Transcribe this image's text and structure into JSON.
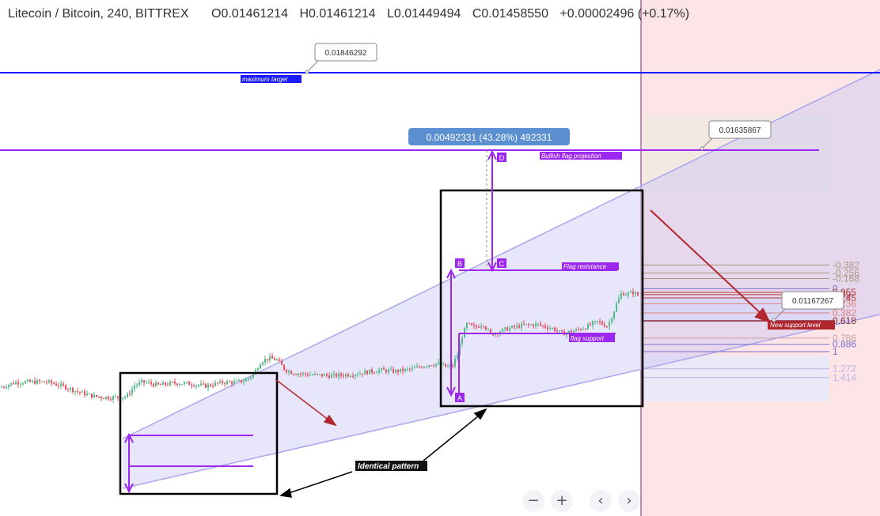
{
  "header": {
    "symbol": "Litecoin / Bitcoin, 240, BITTREX",
    "open": "O0.01461214",
    "high": "H0.01461214",
    "low": "L0.01449494",
    "close": "C0.01458550",
    "change": "+0.00002496 (+0.17%)"
  },
  "colors": {
    "candle_up": "#53b987",
    "candle_down": "#eb4d5c",
    "flag_purple": "#9c27f0",
    "max_target_blue": "#1a1aff",
    "channel_fill": "#c9c8f5",
    "forecast_bg": "#fde4e6",
    "arrow_red": "#b0272d"
  },
  "annotations": {
    "max_target_price": "0.01846292",
    "max_target_label": "maximum target",
    "projection_measure": "0.00492331 (43.28%) 492331",
    "bullish_flag_label": "Bullish flag projection",
    "channel_top_price": "0.01635867",
    "flag_resistance_label": "Flag resistance",
    "flag_support_label": "flag support",
    "new_support_price": "0.01167267",
    "new_support_label": "New support level",
    "identical_pattern_label": "Identical pattern",
    "point_a": "A",
    "point_b": "B",
    "point_c": "C",
    "point_d": "D"
  },
  "chart_data": {
    "type": "candlestick",
    "symbol": "Litecoin / Bitcoin",
    "interval": "240",
    "exchange": "BITTREX",
    "ohlc_last": {
      "open": 0.01461214,
      "high": 0.01461214,
      "low": 0.01449494,
      "close": 0.0145855
    },
    "close_path": [
      [
        0,
        0.00985
      ],
      [
        20,
        0.00999
      ],
      [
        40,
        0.01
      ],
      [
        60,
        0.01
      ],
      [
        80,
        0.00988
      ],
      [
        100,
        0.00972
      ],
      [
        120,
        0.0096
      ],
      [
        140,
        0.00957
      ],
      [
        160,
        0.0096
      ],
      [
        170,
        0.0099
      ],
      [
        180,
        0.01
      ],
      [
        200,
        0.00991
      ],
      [
        220,
        0.00997
      ],
      [
        240,
        0.00995
      ],
      [
        260,
        0.00989
      ],
      [
        280,
        0.00998
      ],
      [
        300,
        0.01
      ],
      [
        310,
        0.01004
      ],
      [
        320,
        0.0102
      ],
      [
        330,
        0.01057
      ],
      [
        340,
        0.01065
      ],
      [
        350,
        0.0106
      ],
      [
        360,
        0.01034
      ],
      [
        370,
        0.01025
      ],
      [
        390,
        0.0102
      ],
      [
        420,
        0.01017
      ],
      [
        440,
        0.0102
      ],
      [
        460,
        0.01026
      ],
      [
        480,
        0.01032
      ],
      [
        500,
        0.01029
      ],
      [
        520,
        0.01035
      ],
      [
        540,
        0.01047
      ],
      [
        555,
        0.0105
      ],
      [
        565,
        0.0104
      ],
      [
        572,
        0.01045
      ],
      [
        578,
        0.01075
      ],
      [
        583,
        0.0112
      ],
      [
        590,
        0.01158
      ],
      [
        600,
        0.01148
      ],
      [
        610,
        0.0116
      ],
      [
        620,
        0.0113
      ],
      [
        640,
        0.01145
      ],
      [
        660,
        0.01155
      ],
      [
        680,
        0.01157
      ],
      [
        700,
        0.01145
      ],
      [
        710,
        0.01132
      ],
      [
        725,
        0.0114
      ],
      [
        740,
        0.0115
      ],
      [
        755,
        0.01165
      ],
      [
        768,
        0.01152
      ],
      [
        775,
        0.0119
      ],
      [
        780,
        0.0122
      ],
      [
        786,
        0.01245
      ],
      [
        792,
        0.0124
      ],
      [
        800,
        0.01245
      ],
      [
        808,
        0.01235
      ]
    ],
    "horizontal_levels": [
      {
        "name": "maximum target",
        "price": 0.01846292
      },
      {
        "name": "Bullish flag projection",
        "price": 0.01635867
      },
      {
        "name": "New support level",
        "price": 0.01167267
      }
    ],
    "measure": {
      "delta": 0.00492331,
      "percent": 43.28,
      "ticks": 492331
    },
    "fibonacci": [
      {
        "ratio": "-0.382",
        "price": 0.0132
      },
      {
        "ratio": "-0.256",
        "price": 0.01298
      },
      {
        "ratio": "-0.168",
        "price": 0.01283
      },
      {
        "ratio": "0",
        "price": 0.01255
      },
      {
        "ratio": "0.055",
        "price": 0.01245
      },
      {
        "ratio": "0.09",
        "price": 0.01239
      },
      {
        "ratio": "0.145",
        "price": 0.0123
      },
      {
        "ratio": "0.236",
        "price": 0.01214
      },
      {
        "ratio": "0.382",
        "price": 0.01189
      },
      {
        "ratio": "0.618",
        "price": 0.01167
      },
      {
        "ratio": "0.786",
        "price": 0.0112
      },
      {
        "ratio": "0.886",
        "price": 0.01103
      },
      {
        "ratio": "1",
        "price": 0.01083
      },
      {
        "ratio": "1.272",
        "price": 0.01036
      },
      {
        "ratio": "1.414",
        "price": 0.01012
      }
    ],
    "grid": false
  },
  "nav": {
    "zoom_out": "−",
    "zoom_in": "+",
    "scroll_left": "‹",
    "scroll_right": "›"
  }
}
